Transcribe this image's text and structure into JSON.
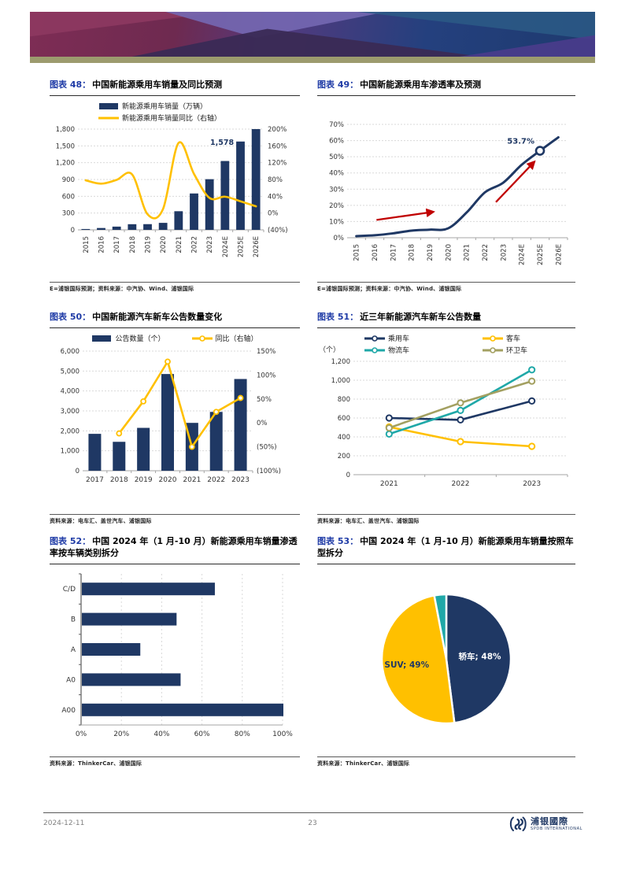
{
  "figures": [
    {
      "label": "图表 48：",
      "title": "中国新能源乘用车销量及同比预测",
      "footnote": "E=浦银国际预测；资料来源：中汽协、Wind、浦银国际"
    },
    {
      "label": "图表 49：",
      "title": "中国新能源乘用车渗透率及预测",
      "footnote": "E=浦银国际预测；资料来源：中汽协、Wind、浦银国际"
    },
    {
      "label": "图表 50：",
      "title": "中国新能源汽车新车公告数量变化",
      "footnote": "资料来源：电车汇、盖世汽车、浦银国际"
    },
    {
      "label": "图表 51：",
      "title": "近三年新能源汽车新车公告数量",
      "footnote": "资料来源：电车汇、盖世汽车、浦银国际"
    },
    {
      "label": "图表 52：",
      "title": "中国 2024 年（1 月-10 月）新能源乘用车销量渗透率按车辆类别拆分",
      "footnote": "资料来源：ThinkerCar、浦银国际"
    },
    {
      "label": "图表 53：",
      "title": "中国 2024 年（1 月-10 月）新能源乘用车销量按照车型拆分",
      "footnote": "资料来源：ThinkerCar、浦银国际"
    }
  ],
  "colors": {
    "navy": "#1F3864",
    "yellow": "#FFC000",
    "teal": "#1FA8A8",
    "olive": "#A3A061",
    "red": "#C00000"
  },
  "chart_data": [
    {
      "figure": "48",
      "type": "combo",
      "mount": "chart-48",
      "categories": [
        "2015",
        "2016",
        "2017",
        "2018",
        "2019",
        "2020",
        "2021",
        "2022",
        "2023",
        "2024E",
        "2025E",
        "2026E"
      ],
      "rotate_labels": true,
      "left_axis": {
        "min": 0,
        "max": 1800,
        "labels": [
          "0",
          "300",
          "600",
          "900",
          "1,200",
          "1,500",
          "1,800"
        ]
      },
      "right_axis": {
        "min": -40,
        "max": 200,
        "labels": [
          "(40%)",
          "0%",
          "40%",
          "80%",
          "120%",
          "160%",
          "200%"
        ]
      },
      "bars": {
        "name": "新能源乘用车销量（万辆）",
        "color": "#1F3864",
        "values": [
          15,
          33,
          58,
          101,
          102,
          125,
          333,
          650,
          905,
          1230,
          1578,
          1800
        ]
      },
      "line": {
        "name": "新能源乘用车销量同比（右轴）",
        "color": "#FFC000",
        "smooth": true,
        "markers": false,
        "values": [
          78,
          70,
          79,
          92,
          -3,
          10,
          167,
          93,
          36,
          39,
          28,
          16
        ]
      },
      "annotation": {
        "index": 10,
        "text": "1,578"
      },
      "legend": [
        {
          "swatch": "bar",
          "color": "#1F3864",
          "label": "新能源乘用车销量（万辆）"
        },
        {
          "swatch": "line",
          "color": "#FFC000",
          "label": "新能源乘用车销量同比（右轴）"
        }
      ]
    },
    {
      "figure": "49",
      "type": "line",
      "mount": "chart-49",
      "categories": [
        "2015",
        "2016",
        "2017",
        "2018",
        "2019",
        "2020",
        "2021",
        "2022",
        "2023",
        "2024E",
        "2025E",
        "2026E"
      ],
      "rotate_labels": true,
      "y_axis": {
        "min": 0,
        "max": 70,
        "labels": [
          "0%",
          "10%",
          "20%",
          "30%",
          "40%",
          "50%",
          "60%",
          "70%"
        ]
      },
      "series": {
        "name": "新能源乘用车渗透率",
        "color": "#1F3864",
        "values": [
          1,
          1.5,
          2.7,
          4.4,
          5,
          5.8,
          15.5,
          28,
          34,
          45,
          53.7,
          62
        ]
      },
      "marker": {
        "index": 10,
        "label": "53.7%"
      },
      "arrows": [
        {
          "from": [
            1.6,
            11
          ],
          "to": [
            4.7,
            16
          ]
        },
        {
          "from": [
            8.1,
            22
          ],
          "to": [
            10.2,
            47
          ]
        }
      ],
      "arrow_color": "#C00000"
    },
    {
      "figure": "50",
      "type": "combo",
      "mount": "chart-50",
      "categories": [
        "2017",
        "2018",
        "2019",
        "2020",
        "2021",
        "2022",
        "2023"
      ],
      "rotate_labels": false,
      "left_axis": {
        "min": 0,
        "max": 6000,
        "labels": [
          "0",
          "1,000",
          "2,000",
          "3,000",
          "4,000",
          "5,000",
          "6,000"
        ]
      },
      "right_axis": {
        "min": -100,
        "max": 150,
        "labels": [
          "(100%)",
          "(50%)",
          "0%",
          "50%",
          "100%",
          "150%"
        ]
      },
      "bars": {
        "name": "公告数量（个）",
        "color": "#1F3864",
        "values": [
          1850,
          1450,
          2150,
          4850,
          2400,
          2950,
          4600
        ]
      },
      "line": {
        "name": "同比（右轴）",
        "color": "#FFC000",
        "smooth": false,
        "markers": true,
        "values": [
          null,
          -22,
          45,
          128,
          -50,
          23,
          52
        ]
      },
      "legend": [
        {
          "swatch": "bar",
          "color": "#1F3864",
          "label": "公告数量（个）"
        },
        {
          "swatch": "line-marker",
          "color": "#FFC000",
          "label": "同比（右轴）"
        }
      ]
    },
    {
      "figure": "51",
      "type": "multiline",
      "mount": "chart-51",
      "unit_label": "（个）",
      "categories": [
        "2021",
        "2022",
        "2023"
      ],
      "y_axis": {
        "min": 0,
        "max": 1200,
        "labels": [
          "0",
          "200",
          "400",
          "600",
          "800",
          "1,000",
          "1,200"
        ]
      },
      "series": [
        {
          "name": "乘用车",
          "color": "#1F3864",
          "values": [
            600,
            580,
            780
          ]
        },
        {
          "name": "客车",
          "color": "#FFC000",
          "values": [
            505,
            350,
            300
          ]
        },
        {
          "name": "物流车",
          "color": "#1FA8A8",
          "values": [
            430,
            680,
            1110
          ]
        },
        {
          "name": "环卫车",
          "color": "#A3A061",
          "values": [
            495,
            760,
            990
          ]
        }
      ]
    },
    {
      "figure": "52",
      "type": "hbar",
      "mount": "chart-52",
      "categories": [
        "C/D",
        "B",
        "A",
        "A0",
        "A00"
      ],
      "values": [
        66,
        47,
        29,
        49,
        100
      ],
      "color": "#1F3864",
      "x_axis": {
        "min": 0,
        "max": 100,
        "labels": [
          "0%",
          "20%",
          "40%",
          "60%",
          "80%",
          "100%"
        ]
      }
    },
    {
      "figure": "53",
      "type": "pie",
      "mount": "chart-53",
      "slices": [
        {
          "label": "轿车; 48%",
          "value": 48,
          "color": "#1F3864",
          "label_color": "#FFFFFF",
          "label_r": 0.52
        },
        {
          "label": "SUV; 49%",
          "value": 49,
          "color": "#FFC000",
          "label_color": "#1F3864",
          "label_r": 0.62
        },
        {
          "label": "",
          "value": 3,
          "color": "#1FA8A8"
        }
      ]
    }
  ],
  "footer": {
    "date": "2024-12-11",
    "page_number": "23",
    "brand": "浦银國際",
    "brand_sub": "SPDB INTERNATIONAL"
  }
}
